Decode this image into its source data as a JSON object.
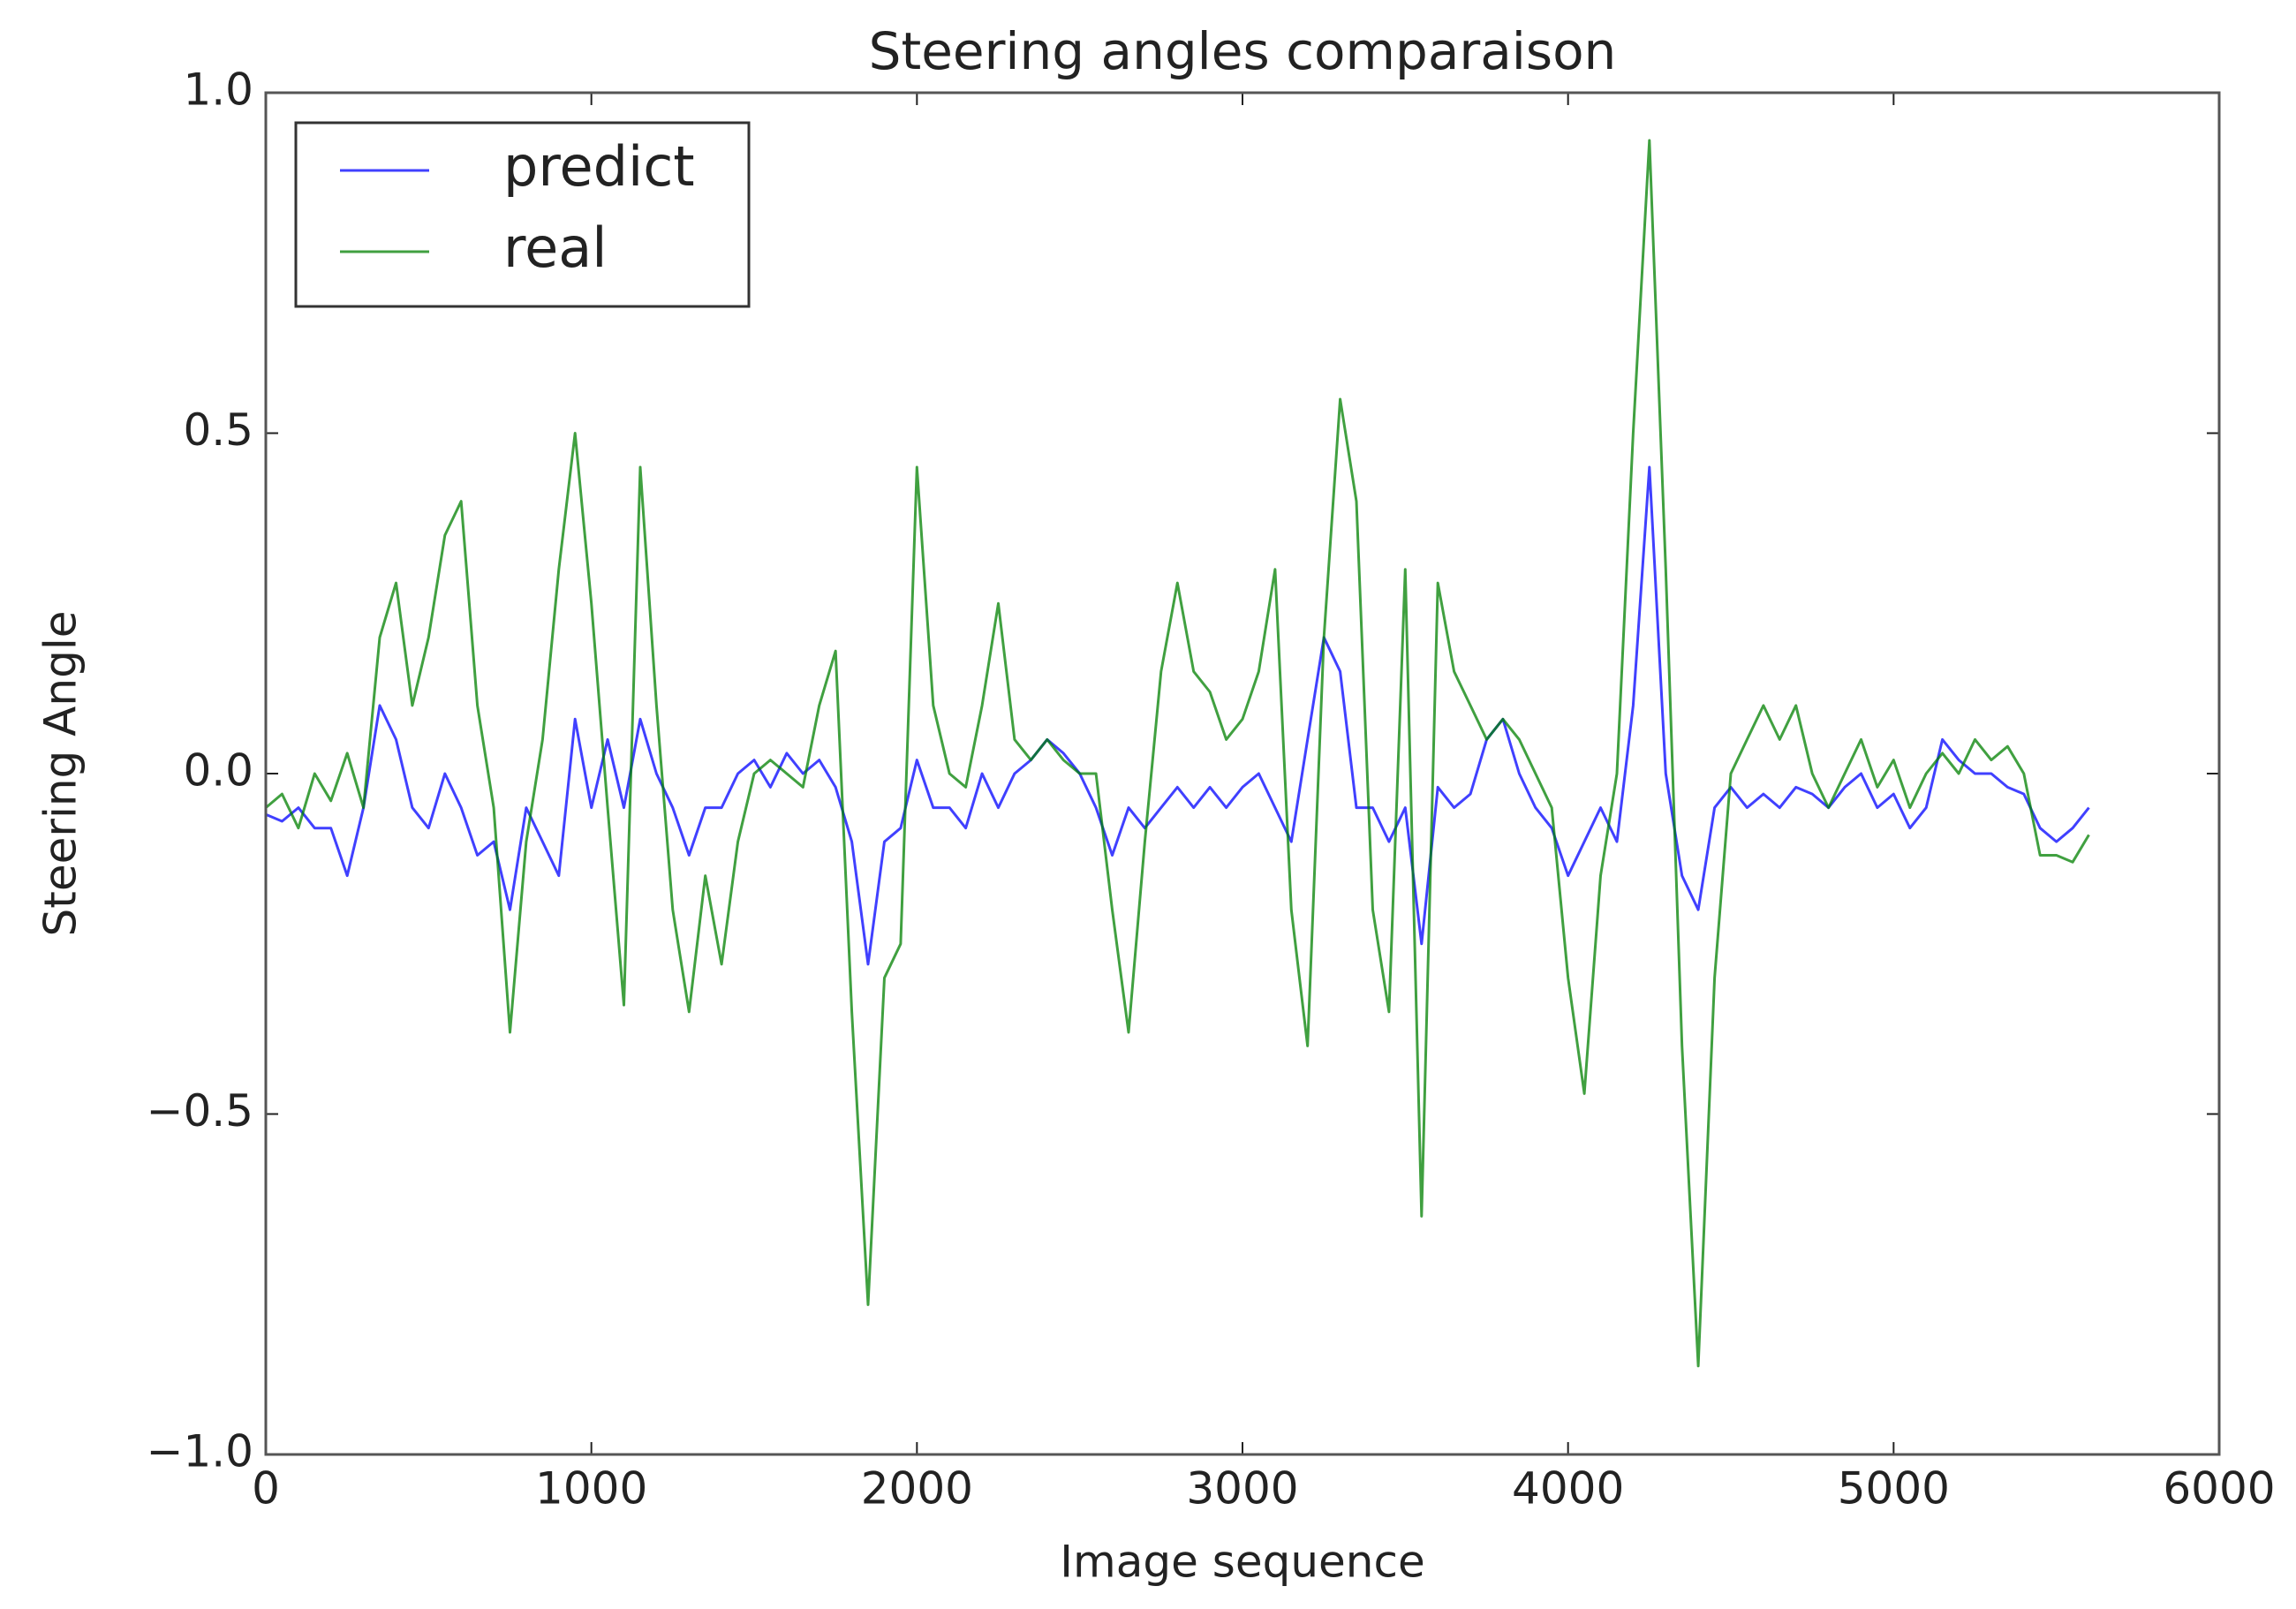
{
  "chart_data": {
    "type": "line",
    "title": "Steering angles comparaison",
    "xlabel": "Image sequence",
    "ylabel": "Steering Angle",
    "x": [
      0,
      50,
      100,
      150,
      200,
      250,
      300,
      350,
      400,
      450,
      500,
      550,
      600,
      650,
      700,
      750,
      800,
      850,
      900,
      950,
      1000,
      1050,
      1100,
      1150,
      1200,
      1250,
      1300,
      1350,
      1400,
      1450,
      1500,
      1550,
      1600,
      1650,
      1700,
      1750,
      1800,
      1850,
      1900,
      1950,
      2000,
      2050,
      2100,
      2150,
      2200,
      2250,
      2300,
      2350,
      2400,
      2450,
      2500,
      2550,
      2600,
      2650,
      2700,
      2750,
      2800,
      2850,
      2900,
      2950,
      3000,
      3050,
      3100,
      3150,
      3200,
      3250,
      3300,
      3350,
      3400,
      3450,
      3500,
      3550,
      3600,
      3650,
      3700,
      3750,
      3800,
      3850,
      3900,
      3950,
      4000,
      4050,
      4100,
      4150,
      4200,
      4250,
      4300,
      4350,
      4400,
      4450,
      4500,
      4550,
      4600,
      4650,
      4700,
      4750,
      4800,
      4850,
      4900,
      4950,
      5000,
      5050,
      5100,
      5150,
      5200,
      5250,
      5300,
      5350,
      5400,
      5450,
      5500,
      5550,
      5600
    ],
    "series": [
      {
        "name": "predict",
        "color": "#0000ff",
        "values": [
          -0.06,
          -0.07,
          -0.05,
          -0.08,
          -0.08,
          -0.15,
          -0.05,
          0.1,
          0.05,
          -0.05,
          -0.08,
          0.0,
          -0.05,
          -0.12,
          -0.1,
          -0.2,
          -0.05,
          -0.1,
          -0.15,
          0.08,
          -0.05,
          0.05,
          -0.05,
          0.08,
          0.0,
          -0.05,
          -0.12,
          -0.05,
          -0.05,
          0.0,
          0.02,
          -0.02,
          0.03,
          0.0,
          0.02,
          -0.02,
          -0.1,
          -0.28,
          -0.1,
          -0.08,
          0.02,
          -0.05,
          -0.05,
          -0.08,
          0.0,
          -0.05,
          0.0,
          0.02,
          0.05,
          0.03,
          0.0,
          -0.05,
          -0.12,
          -0.05,
          -0.08,
          -0.05,
          -0.02,
          -0.05,
          -0.02,
          -0.05,
          -0.02,
          0.0,
          -0.05,
          -0.1,
          0.05,
          0.2,
          0.15,
          -0.05,
          -0.05,
          -0.1,
          -0.05,
          -0.25,
          -0.02,
          -0.05,
          -0.03,
          0.05,
          0.08,
          0.0,
          -0.05,
          -0.08,
          -0.15,
          -0.1,
          -0.05,
          -0.1,
          0.1,
          0.45,
          0.0,
          -0.15,
          -0.2,
          -0.05,
          -0.02,
          -0.05,
          -0.03,
          -0.05,
          -0.02,
          -0.03,
          -0.05,
          -0.02,
          0.0,
          -0.05,
          -0.03,
          -0.08,
          -0.05,
          0.05,
          0.02,
          0.0,
          0.0,
          -0.02,
          -0.03,
          -0.08,
          -0.1,
          -0.08,
          -0.05
        ]
      },
      {
        "name": "real",
        "color": "#008000",
        "values": [
          -0.05,
          -0.03,
          -0.08,
          0.0,
          -0.04,
          0.03,
          -0.05,
          0.2,
          0.28,
          0.1,
          0.2,
          0.35,
          0.4,
          0.1,
          -0.05,
          -0.38,
          -0.1,
          0.05,
          0.3,
          0.5,
          0.25,
          -0.05,
          -0.34,
          0.45,
          0.1,
          -0.2,
          -0.35,
          -0.15,
          -0.28,
          -0.1,
          0.0,
          0.02,
          0.0,
          -0.02,
          0.1,
          0.18,
          -0.35,
          -0.78,
          -0.3,
          -0.25,
          0.45,
          0.1,
          0.0,
          -0.02,
          0.1,
          0.25,
          0.05,
          0.02,
          0.05,
          0.02,
          0.0,
          0.0,
          -0.2,
          -0.38,
          -0.1,
          0.15,
          0.28,
          0.15,
          0.12,
          0.05,
          0.08,
          0.15,
          0.3,
          -0.2,
          -0.4,
          0.2,
          0.55,
          0.4,
          -0.2,
          -0.35,
          0.3,
          -0.65,
          0.28,
          0.15,
          0.1,
          0.05,
          0.08,
          0.05,
          0.0,
          -0.05,
          -0.3,
          -0.47,
          -0.15,
          0.0,
          0.5,
          0.93,
          0.3,
          -0.4,
          -0.87,
          -0.3,
          0.0,
          0.05,
          0.1,
          0.05,
          0.1,
          0.0,
          -0.05,
          0.0,
          0.05,
          -0.02,
          0.02,
          -0.05,
          0.0,
          0.03,
          0.0,
          0.05,
          0.02,
          0.04,
          0.0,
          -0.12,
          -0.12,
          -0.13,
          -0.09
        ]
      }
    ],
    "xlim": [
      0,
      6000
    ],
    "xticks": [
      0,
      1000,
      2000,
      3000,
      4000,
      5000,
      6000
    ],
    "ylim": [
      -1.0,
      1.0
    ],
    "yticks": [
      {
        "value": -1.0,
        "label": "−1.0"
      },
      {
        "value": -0.5,
        "label": "−0.5"
      },
      {
        "value": 0.0,
        "label": "0.0"
      },
      0.5,
      {
        "value": 1.0,
        "label": "1.0"
      }
    ],
    "legend": "upper left"
  }
}
